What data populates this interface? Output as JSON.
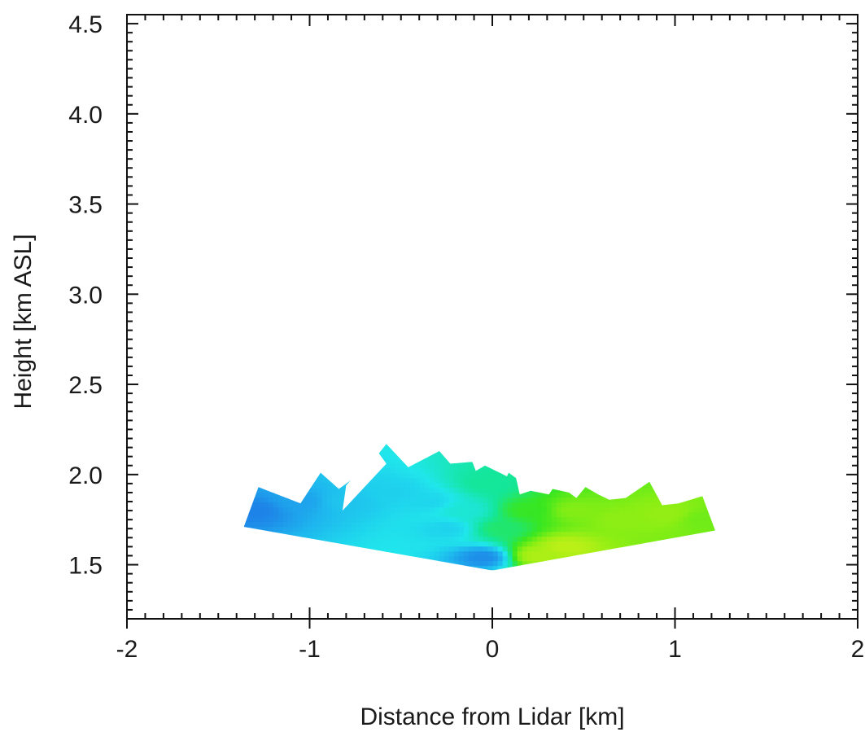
{
  "chart_data": {
    "type": "heatmap",
    "title": "",
    "xlabel": "Distance from Lidar [km]",
    "ylabel": "Height [km ASL]",
    "xlim": [
      -2,
      2
    ],
    "ylim": [
      1.2,
      4.55
    ],
    "xticks": [
      -2,
      -1,
      0,
      1,
      2
    ],
    "xtick_labels": [
      "-2",
      "-1",
      "0",
      "1",
      "2"
    ],
    "yticks": [
      1.5,
      2.0,
      2.5,
      3.0,
      3.5,
      4.0,
      4.5
    ],
    "ytick_labels": [
      "1.5",
      "2.0",
      "2.5",
      "3.0",
      "3.5",
      "4.0",
      "4.5"
    ],
    "grid": false,
    "lidar_position": [
      0,
      1.47
    ],
    "scan_outline": [
      [
        -1.36,
        1.71
      ],
      [
        -1.28,
        1.93
      ],
      [
        -1.05,
        1.84
      ],
      [
        -0.94,
        2.01
      ],
      [
        -0.84,
        1.92
      ],
      [
        -0.69,
        2.03
      ],
      [
        -0.58,
        2.17
      ],
      [
        -0.46,
        2.04
      ],
      [
        -0.29,
        2.13
      ],
      [
        -0.23,
        2.06
      ],
      [
        -0.11,
        2.07
      ],
      [
        -0.09,
        2.02
      ],
      [
        -0.04,
        2.05
      ],
      [
        0.08,
        1.99
      ],
      [
        0.09,
        2.01
      ],
      [
        0.13,
        1.98
      ],
      [
        0.15,
        1.89
      ],
      [
        0.21,
        1.91
      ],
      [
        0.31,
        1.89
      ],
      [
        0.33,
        1.92
      ],
      [
        0.42,
        1.9
      ],
      [
        0.46,
        1.87
      ],
      [
        0.51,
        1.93
      ],
      [
        0.58,
        1.89
      ],
      [
        0.64,
        1.86
      ],
      [
        0.73,
        1.87
      ],
      [
        0.86,
        1.96
      ],
      [
        0.93,
        1.83
      ],
      [
        1.02,
        1.84
      ],
      [
        1.15,
        1.88
      ],
      [
        1.22,
        1.69
      ],
      [
        0.01,
        1.47
      ],
      [
        -0.01,
        1.47
      ]
    ],
    "gap_polygon": [
      [
        -0.82,
        1.8
      ],
      [
        -0.8,
        1.94
      ],
      [
        -0.63,
        2.13
      ],
      [
        -0.58,
        2.06
      ]
    ],
    "colormap": [
      "#1e78e6",
      "#1eb4ee",
      "#20e6ec",
      "#14e69a",
      "#38e620",
      "#8aee14",
      "#c6f018"
    ],
    "color_sources": [
      {
        "x": -1.3,
        "y": 1.8,
        "level": 0.03
      },
      {
        "x": -1.05,
        "y": 1.85,
        "level": 0.12
      },
      {
        "x": -0.8,
        "y": 1.85,
        "level": 0.22
      },
      {
        "x": -0.55,
        "y": 1.9,
        "level": 0.26
      },
      {
        "x": -0.35,
        "y": 1.85,
        "level": 0.28
      },
      {
        "x": -0.25,
        "y": 1.7,
        "level": 0.27
      },
      {
        "x": -0.05,
        "y": 1.54,
        "level": 0.06
      },
      {
        "x": -0.15,
        "y": 1.8,
        "level": 0.38
      },
      {
        "x": -0.02,
        "y": 1.95,
        "level": 0.5
      },
      {
        "x": 0.05,
        "y": 1.7,
        "level": 0.56
      },
      {
        "x": 0.2,
        "y": 1.8,
        "level": 0.66
      },
      {
        "x": 0.45,
        "y": 1.8,
        "level": 0.82
      },
      {
        "x": 0.7,
        "y": 1.75,
        "level": 0.84
      },
      {
        "x": 0.95,
        "y": 1.78,
        "level": 0.86
      },
      {
        "x": 1.15,
        "y": 1.75,
        "level": 0.78
      },
      {
        "x": 0.25,
        "y": 1.55,
        "level": 0.93
      },
      {
        "x": 0.4,
        "y": 1.6,
        "level": 0.97
      }
    ]
  }
}
